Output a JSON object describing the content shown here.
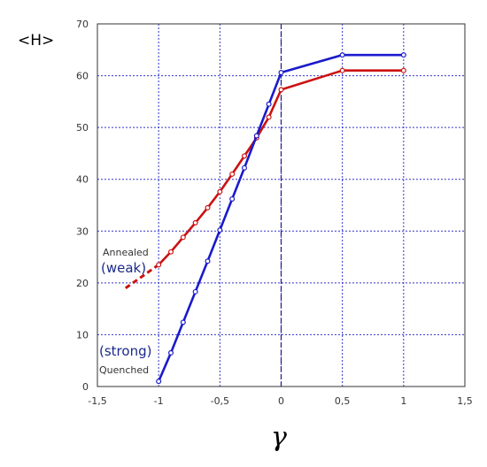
{
  "chart_data": {
    "type": "line",
    "xlabel": "γ",
    "ylabel": "<H>",
    "xlim": [
      -1.5,
      1.5
    ],
    "ylim": [
      0,
      70
    ],
    "x_ticks": [
      "-1,5",
      "-1",
      "-0,5",
      "0",
      "0,5",
      "1",
      "1,5"
    ],
    "y_ticks": [
      "0",
      "10",
      "20",
      "30",
      "40",
      "50",
      "60",
      "70"
    ],
    "grid": true,
    "series": [
      {
        "color": "#cc1111",
        "x": [
          -1,
          -0.9,
          -0.8,
          -0.7,
          -0.6,
          -0.5,
          -0.4,
          -0.3,
          -0.2,
          -0.1,
          0,
          0.5,
          1
        ],
        "y": [
          23.5,
          26,
          28.8,
          31.6,
          34.5,
          37.6,
          41,
          44.5,
          48,
          52,
          57.3,
          61,
          61
        ],
        "dashed_extension": {
          "x": [
            -1.27,
            -1
          ],
          "y": [
            19,
            23.5
          ]
        }
      },
      {
        "color": "#1a1acc",
        "x": [
          -1,
          -0.9,
          -0.8,
          -0.7,
          -0.6,
          -0.5,
          -0.4,
          -0.3,
          -0.2,
          -0.1,
          0,
          0.5,
          1
        ],
        "y": [
          1,
          6.5,
          12.4,
          18.3,
          24.2,
          30.2,
          36.2,
          42.2,
          48.4,
          54.5,
          60.6,
          64,
          64
        ]
      }
    ],
    "annotations": {
      "annealed": "Annealed",
      "weak": "(weak)",
      "strong": "(strong)",
      "quenched": "Quenched"
    }
  }
}
